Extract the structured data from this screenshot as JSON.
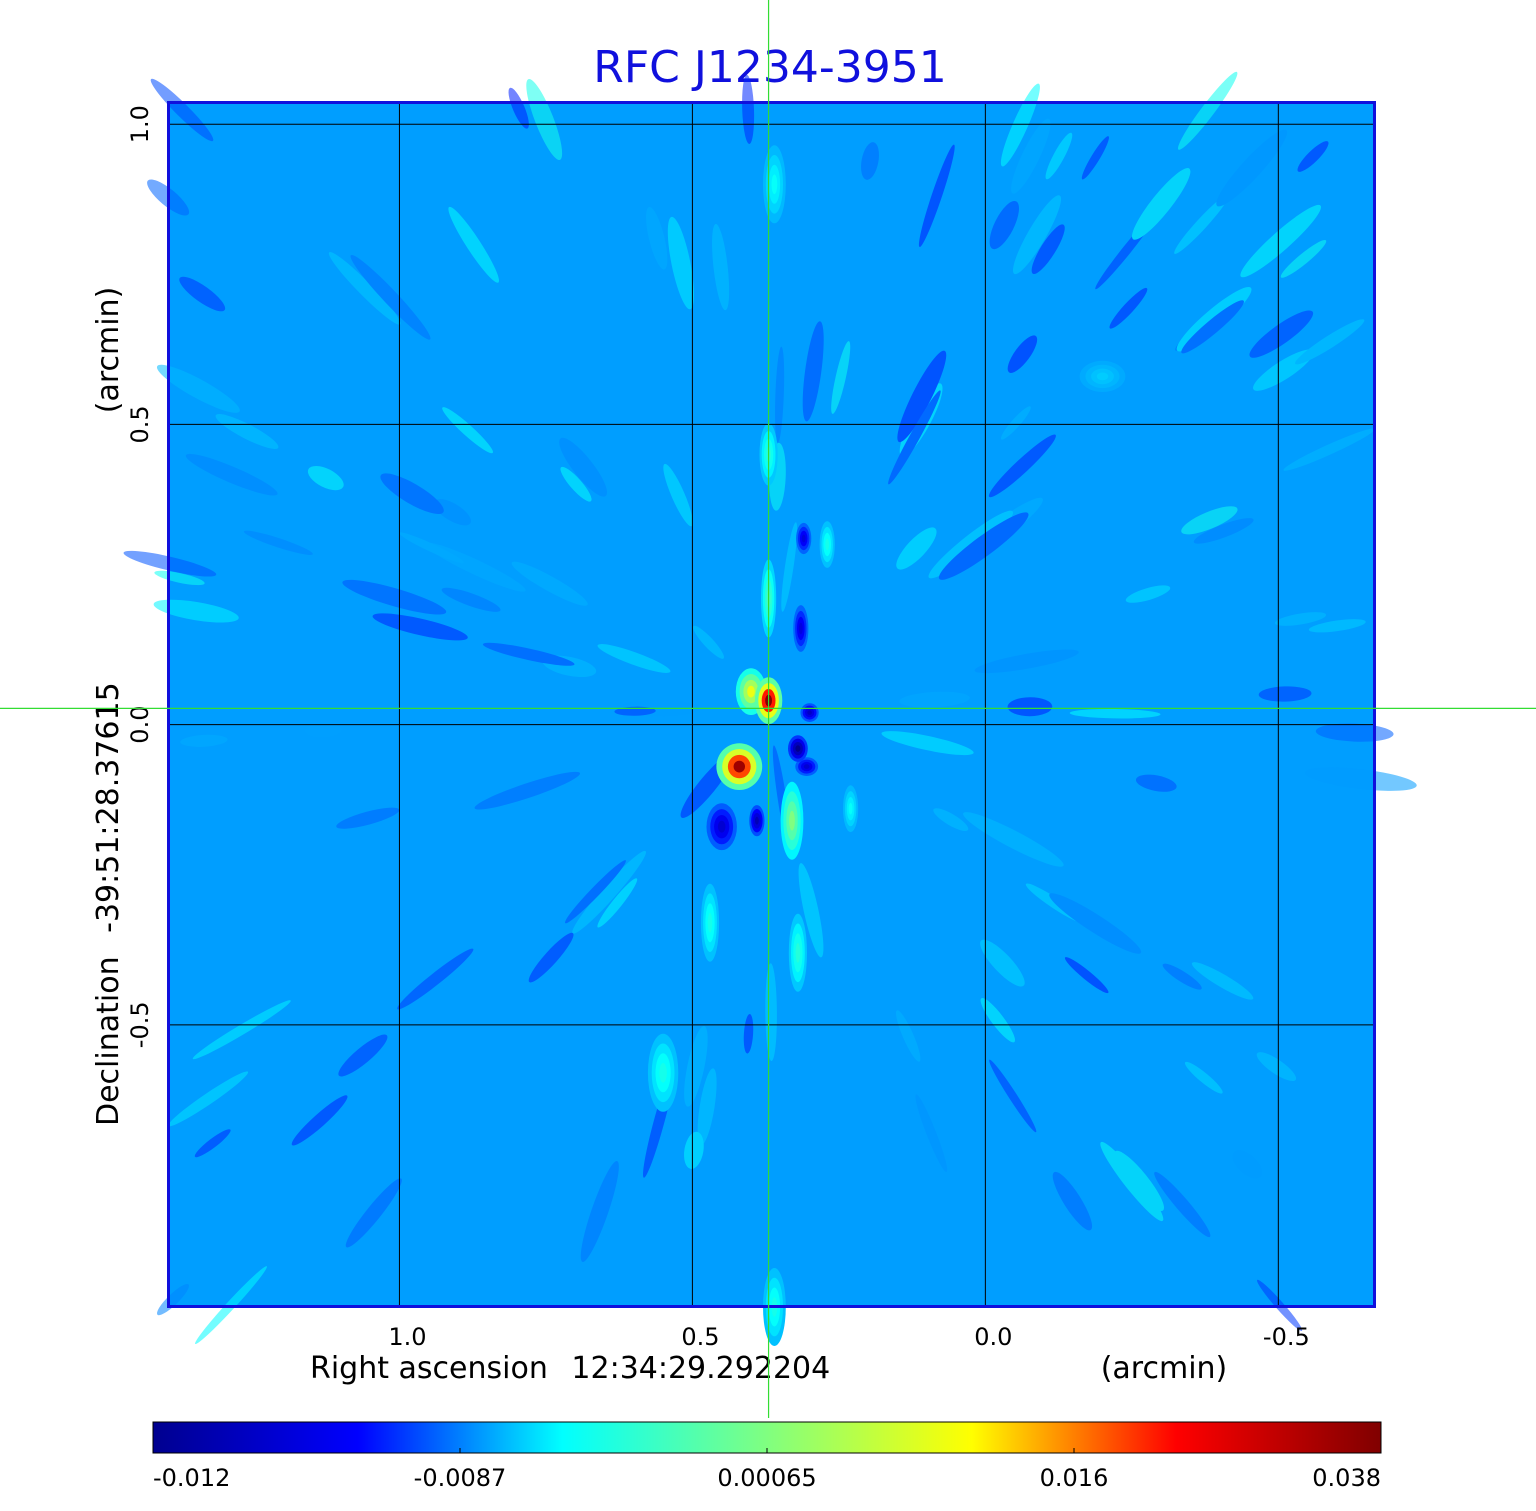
{
  "chart_data": {
    "type": "heatmap",
    "title": "RFC J1234-3951",
    "xlabel_prefix": "Right ascension",
    "xlabel_center": "12:34:29.292204",
    "xlabel_units": "(arcmin)",
    "ylabel_prefix": "Declination",
    "ylabel_center": "-39:51:28.37615",
    "ylabel_units": "(arcmin)",
    "x_ticks": [
      "1.0",
      "0.5",
      "0.0",
      "-0.5"
    ],
    "x_tick_values": [
      1.0,
      0.5,
      0.0,
      -0.5
    ],
    "y_ticks": [
      "1.0",
      "0.5",
      "0.0",
      "-0.5"
    ],
    "y_tick_values": [
      1.0,
      0.5,
      0.0,
      -0.5
    ],
    "xlim": [
      1.395,
      -0.665
    ],
    "ylim": [
      -0.97,
      1.037
    ],
    "grid": true,
    "crosshair": {
      "ra_offset": 0.37,
      "dec_offset": 0.027
    },
    "colorbar": {
      "labels": [
        "-0.012",
        "-0.0087",
        "0.00065",
        "0.016",
        "0.038"
      ],
      "min": -0.012,
      "max": 0.038,
      "colormap": [
        "#00008f",
        "#0000ff",
        "#00ffff",
        "#80ff80",
        "#ffff00",
        "#ff0000",
        "#800000"
      ]
    },
    "sources": [
      {
        "ra": 0.37,
        "dec": 0.04,
        "value": 0.038,
        "sigma_ra": 0.018,
        "sigma_dec": 0.03
      },
      {
        "ra": 0.4,
        "dec": 0.055,
        "value": 0.02,
        "sigma_ra": 0.02,
        "sigma_dec": 0.03
      },
      {
        "ra": 0.42,
        "dec": -0.07,
        "value": 0.036,
        "sigma_ra": 0.03,
        "sigma_dec": 0.03
      },
      {
        "ra": 0.32,
        "dec": -0.04,
        "value": -0.012,
        "sigma_ra": 0.013,
        "sigma_dec": 0.017
      },
      {
        "ra": 0.3,
        "dec": 0.02,
        "value": -0.008,
        "sigma_ra": 0.012,
        "sigma_dec": 0.012
      },
      {
        "ra": 0.305,
        "dec": -0.07,
        "value": -0.007,
        "sigma_ra": 0.015,
        "sigma_dec": 0.012
      },
      {
        "ra": 0.45,
        "dec": -0.17,
        "value": -0.007,
        "sigma_ra": 0.02,
        "sigma_dec": 0.03
      },
      {
        "ra": 0.39,
        "dec": -0.16,
        "value": -0.009,
        "sigma_ra": 0.01,
        "sigma_dec": 0.02
      },
      {
        "ra": 0.315,
        "dec": 0.16,
        "value": -0.006,
        "sigma_ra": 0.01,
        "sigma_dec": 0.03
      },
      {
        "ra": 0.31,
        "dec": 0.31,
        "value": -0.006,
        "sigma_ra": 0.01,
        "sigma_dec": 0.02
      },
      {
        "ra": 0.33,
        "dec": -0.16,
        "value": 0.013,
        "sigma_ra": 0.015,
        "sigma_dec": 0.05
      },
      {
        "ra": 0.37,
        "dec": 0.21,
        "value": 0.009,
        "sigma_ra": 0.01,
        "sigma_dec": 0.05
      },
      {
        "ra": 0.37,
        "dec": 0.45,
        "value": 0.007,
        "sigma_ra": 0.012,
        "sigma_dec": 0.04
      },
      {
        "ra": 0.27,
        "dec": 0.3,
        "value": 0.006,
        "sigma_ra": 0.01,
        "sigma_dec": 0.03
      },
      {
        "ra": 0.47,
        "dec": -0.33,
        "value": 0.006,
        "sigma_ra": 0.012,
        "sigma_dec": 0.05
      },
      {
        "ra": 0.32,
        "dec": -0.38,
        "value": 0.007,
        "sigma_ra": 0.012,
        "sigma_dec": 0.05
      },
      {
        "ra": 0.55,
        "dec": -0.58,
        "value": 0.006,
        "sigma_ra": 0.02,
        "sigma_dec": 0.05
      },
      {
        "ra": 0.36,
        "dec": -0.97,
        "value": 0.006,
        "sigma_ra": 0.015,
        "sigma_dec": 0.05
      },
      {
        "ra": 0.36,
        "dec": 0.9,
        "value": 0.005,
        "sigma_ra": 0.015,
        "sigma_dec": 0.05
      },
      {
        "ra": 0.23,
        "dec": -0.14,
        "value": 0.005,
        "sigma_ra": 0.01,
        "sigma_dec": 0.03
      },
      {
        "ra": -0.2,
        "dec": 0.58,
        "value": 0.003,
        "sigma_ra": 0.03,
        "sigma_dec": 0.02
      }
    ]
  }
}
